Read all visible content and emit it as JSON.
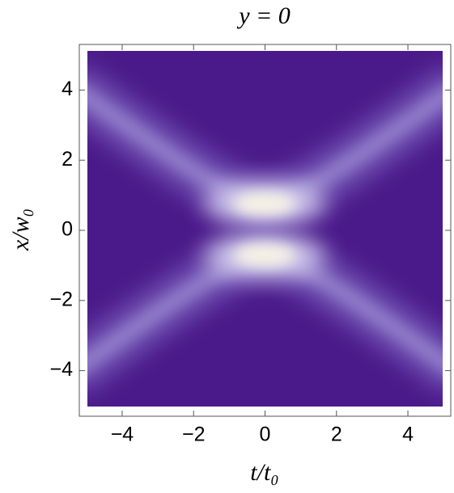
{
  "chart_data": {
    "type": "density",
    "title": "y =  0",
    "xlabel": "t/t₀",
    "ylabel": "x/w₀",
    "xlim": [
      -5.2,
      5.2
    ],
    "ylim": [
      -5.3,
      5.3
    ],
    "xticks": [
      {
        "value": -4,
        "label": "−4"
      },
      {
        "value": -2,
        "label": "−2"
      },
      0,
      2,
      4
    ],
    "yticks": [
      {
        "value": -4,
        "label": "−4"
      },
      {
        "value": -2,
        "label": "−2"
      },
      0,
      2,
      4
    ],
    "color": "#4b1a8a"
  }
}
